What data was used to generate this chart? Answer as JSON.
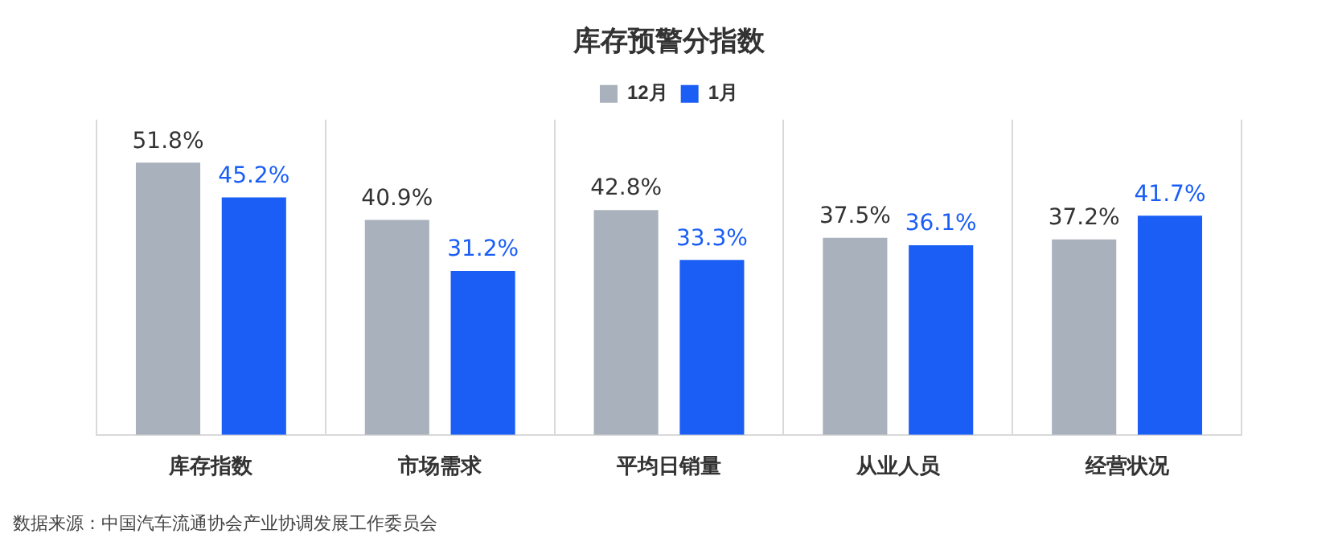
{
  "chart_data": {
    "type": "bar",
    "title": "库存预警分指数",
    "categories": [
      "库存指数",
      "市场需求",
      "平均日销量",
      "从业人员",
      "经营状况"
    ],
    "series": [
      {
        "name": "12月",
        "color": "#a9b1bc",
        "values": [
          51.8,
          40.9,
          42.8,
          37.5,
          37.2
        ],
        "value_labels": [
          "51.8%",
          "40.9%",
          "42.8%",
          "37.5%",
          "37.2%"
        ]
      },
      {
        "name": "1月",
        "color": "#1a5ef5",
        "values": [
          45.2,
          31.2,
          33.3,
          36.1,
          41.7
        ],
        "value_labels": [
          "45.2%",
          "31.2%",
          "33.3%",
          "36.1%",
          "41.7%"
        ]
      }
    ],
    "ylim": [
      0,
      60
    ],
    "tick_labels": "x",
    "grid": "x",
    "legend": "top",
    "annotations": [
      "数据来源：中国汽车流通协会产业协调发展工作委员会"
    ]
  }
}
